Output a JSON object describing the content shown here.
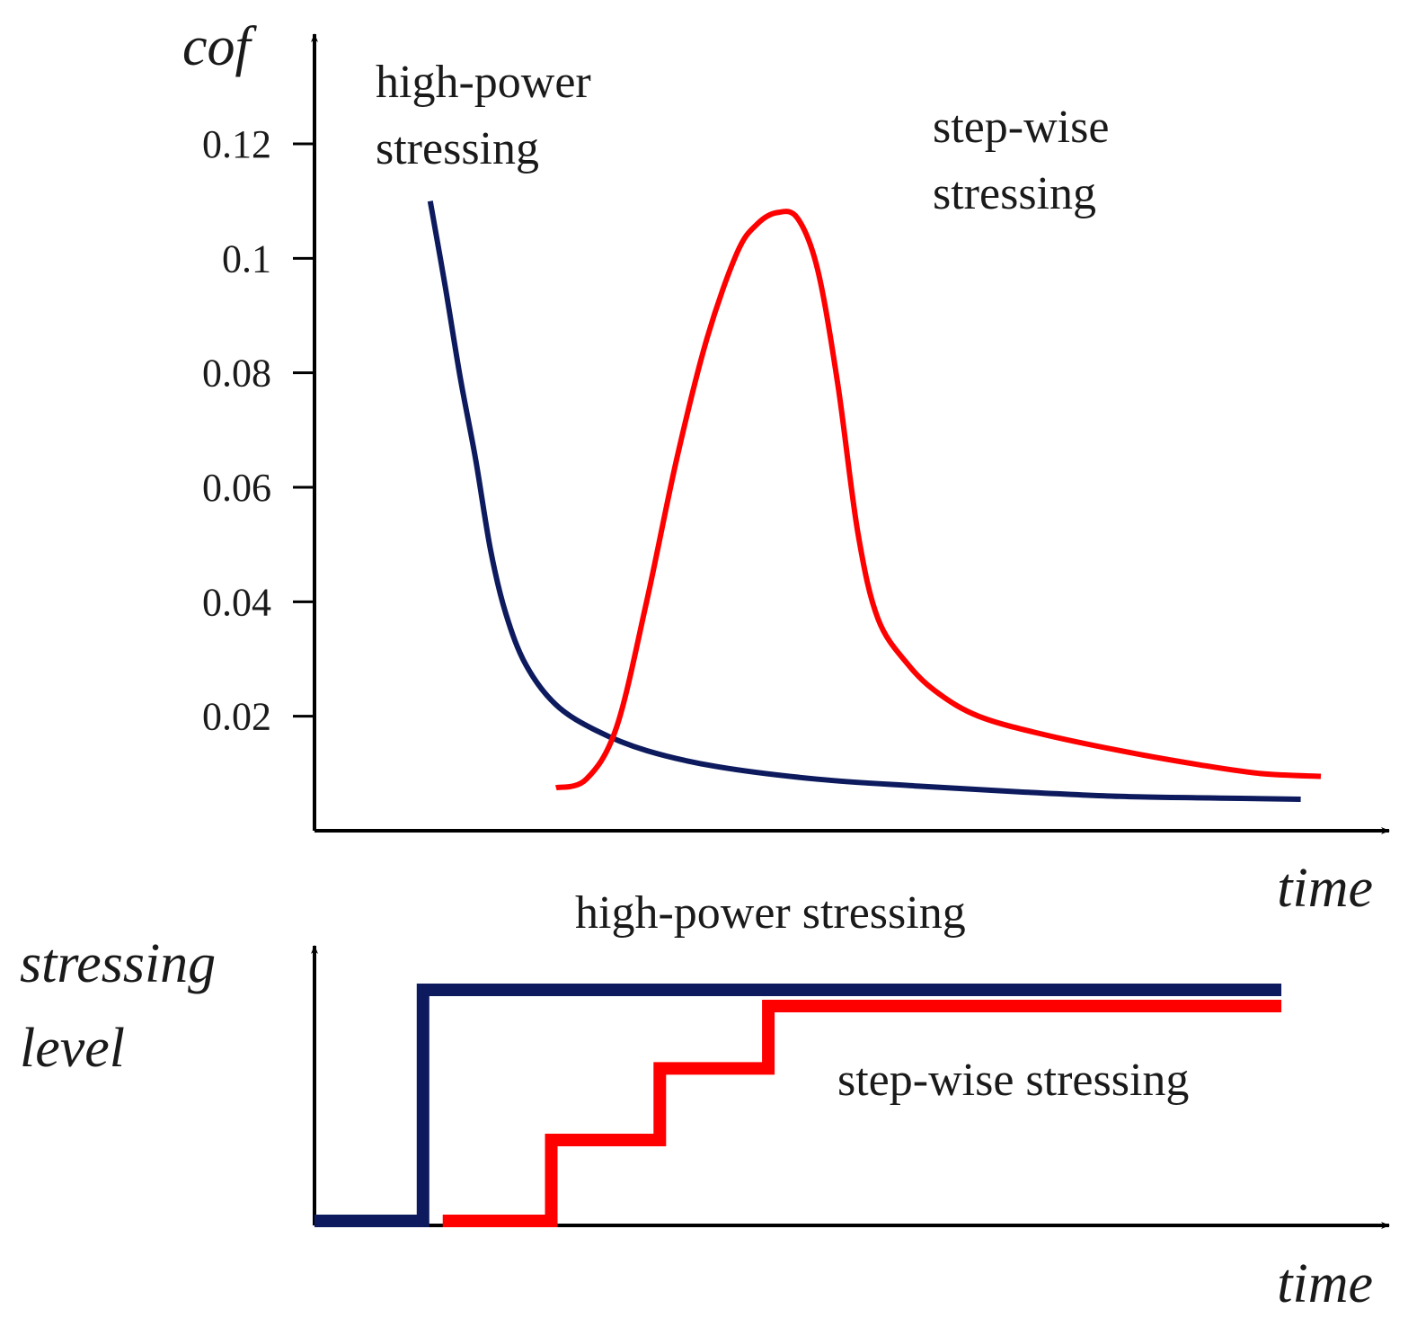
{
  "chart_data": [
    {
      "type": "line",
      "ylabel": "cof",
      "xlabel": "time",
      "ylim": [
        0,
        0.14
      ],
      "xlim": [
        0,
        1
      ],
      "yticks": [
        "0.02",
        "0.04",
        "0.06",
        "0.08",
        "0.1",
        "0.12"
      ],
      "ytick_values": [
        0.02,
        0.04,
        0.06,
        0.08,
        0.1,
        0.12
      ],
      "annotations": [
        {
          "key": "hp1",
          "text": "high-power"
        },
        {
          "key": "hp2",
          "text": "stressing"
        },
        {
          "key": "sw1",
          "text": "step-wise"
        },
        {
          "key": "sw2",
          "text": "stressing"
        }
      ],
      "series": [
        {
          "name": "high-power stressing",
          "color": "#0d1b5e",
          "x": [
            0.115,
            0.13,
            0.145,
            0.16,
            0.175,
            0.19,
            0.21,
            0.24,
            0.28,
            0.33,
            0.4,
            0.5,
            0.6,
            0.7,
            0.8,
            0.9,
            0.98
          ],
          "y": [
            0.11,
            0.095,
            0.079,
            0.065,
            0.049,
            0.038,
            0.029,
            0.022,
            0.0175,
            0.014,
            0.0112,
            0.009,
            0.0078,
            0.0068,
            0.006,
            0.0057,
            0.0055
          ]
        },
        {
          "name": "step-wise stressing",
          "color": "#ff0000",
          "x": [
            0.24,
            0.27,
            0.3,
            0.33,
            0.36,
            0.39,
            0.42,
            0.44,
            0.46,
            0.48,
            0.5,
            0.52,
            0.54,
            0.56,
            0.59,
            0.62,
            0.66,
            0.72,
            0.8,
            0.88,
            0.94,
            1.0
          ],
          "y": [
            0.0075,
            0.009,
            0.018,
            0.04,
            0.065,
            0.086,
            0.101,
            0.106,
            0.108,
            0.107,
            0.098,
            0.078,
            0.052,
            0.037,
            0.029,
            0.024,
            0.02,
            0.017,
            0.014,
            0.0115,
            0.01,
            0.0095
          ]
        }
      ]
    },
    {
      "type": "line",
      "ylabel_lines": [
        "stressing",
        "level"
      ],
      "xlabel": "time",
      "ylim": [
        0,
        1
      ],
      "xlim": [
        0,
        1
      ],
      "annotations": [
        {
          "key": "hp",
          "text": "high-power stressing"
        },
        {
          "key": "sw",
          "text": "step-wise stressing"
        }
      ],
      "series": [
        {
          "name": "high-power stressing",
          "color": "#0d1b5e",
          "step_x": [
            0,
            0.11,
            0.11,
            0.98
          ],
          "step_y": [
            0,
            0,
            1,
            1
          ]
        },
        {
          "name": "step-wise stressing",
          "color": "#ff0000",
          "step_x": [
            0.13,
            0.24,
            0.24,
            0.35,
            0.35,
            0.46,
            0.46,
            0.98
          ],
          "step_y": [
            0,
            0,
            0.35,
            0.35,
            0.66,
            0.66,
            0.93,
            0.93
          ]
        }
      ]
    }
  ]
}
